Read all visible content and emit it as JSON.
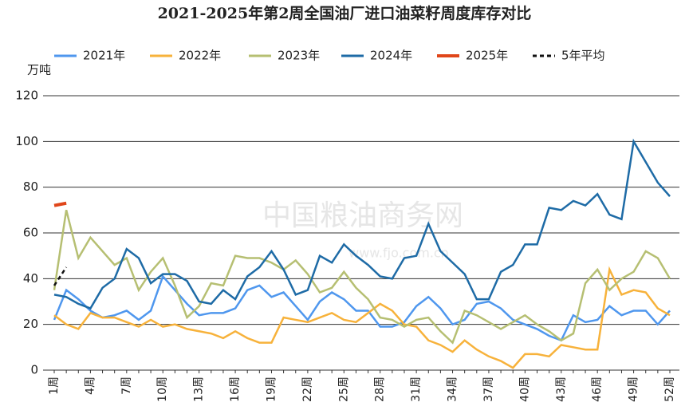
{
  "chart_data": {
    "type": "line",
    "title": "2021-2025年第2周全国油厂进口油菜籽周度库存对比",
    "y_label": "万吨",
    "watermark": [
      "中国粮油商务网",
      "www.fjo.com.cn"
    ],
    "categories": [
      "1周",
      null,
      null,
      "4周",
      null,
      null,
      "7周",
      null,
      null,
      "10周",
      null,
      null,
      "13周",
      null,
      null,
      "16周",
      null,
      null,
      "19周",
      null,
      null,
      "22周",
      null,
      null,
      "25周",
      null,
      null,
      "28周",
      null,
      null,
      "31周",
      null,
      null,
      "34周",
      null,
      null,
      "37周",
      null,
      null,
      "40周",
      null,
      null,
      "43周",
      null,
      null,
      "46周",
      null,
      null,
      "49周",
      null,
      null,
      "52周"
    ],
    "ylim": [
      0,
      120
    ],
    "yticks": [
      0,
      20,
      40,
      60,
      80,
      100,
      120
    ],
    "grid": true,
    "series": [
      {
        "name": "2021年",
        "color": "#4f97ee",
        "values": [
          22,
          35,
          31,
          26,
          23,
          24,
          26,
          22,
          26,
          41,
          35,
          29,
          24,
          25,
          25,
          27,
          35,
          37,
          32,
          34,
          28,
          22,
          30,
          34,
          31,
          26,
          26,
          19,
          19,
          21,
          28,
          32,
          27,
          20,
          22,
          29,
          30,
          27,
          22,
          20,
          18,
          15,
          13,
          24,
          21,
          22,
          28,
          24,
          26,
          26,
          20,
          26
        ]
      },
      {
        "name": "2022年",
        "color": "#f7b23b",
        "values": [
          24,
          20,
          18,
          25,
          23,
          23,
          21,
          19,
          22,
          19,
          20,
          18,
          17,
          16,
          14,
          17,
          14,
          12,
          12,
          23,
          22,
          21,
          23,
          25,
          22,
          21,
          25,
          29,
          26,
          20,
          19,
          13,
          11,
          8,
          13,
          9,
          6,
          4,
          1,
          7,
          7,
          6,
          11,
          10,
          9,
          9,
          44,
          33,
          35,
          34,
          27,
          24
        ]
      },
      {
        "name": "2023年",
        "color": "#b6bf72",
        "values": [
          35,
          70,
          49,
          58,
          52,
          46,
          49,
          35,
          43,
          49,
          37,
          23,
          28,
          38,
          37,
          50,
          49,
          49,
          47,
          44,
          48,
          42,
          34,
          36,
          43,
          36,
          31,
          23,
          22,
          19,
          22,
          23,
          17,
          12,
          26,
          24,
          21,
          18,
          21,
          24,
          20,
          17,
          13,
          16,
          38,
          44,
          35,
          40,
          43,
          52,
          49,
          40
        ]
      },
      {
        "name": "2024年",
        "color": "#1e6ba6",
        "values": [
          33,
          32,
          29,
          27,
          36,
          40,
          53,
          49,
          38,
          42,
          42,
          39,
          30,
          29,
          35,
          31,
          41,
          45,
          52,
          44,
          33,
          35,
          50,
          47,
          55,
          50,
          46,
          41,
          40,
          49,
          50,
          64,
          52,
          47,
          42,
          31,
          31,
          43,
          46,
          55,
          55,
          71,
          70,
          74,
          72,
          77,
          68,
          66,
          100,
          91,
          82,
          76
        ]
      },
      {
        "name": "2025年",
        "color": "#e0461a",
        "width": 4,
        "values": [
          72,
          73,
          null,
          null,
          null,
          null,
          null,
          null,
          null,
          null,
          null,
          null,
          null,
          null,
          null,
          null,
          null,
          null,
          null,
          null,
          null,
          null,
          null,
          null,
          null,
          null,
          null,
          null,
          null,
          null,
          null,
          null,
          null,
          null,
          null,
          null,
          null,
          null,
          null,
          null,
          null,
          null,
          null,
          null,
          null,
          null,
          null,
          null,
          null,
          null,
          null,
          null
        ]
      },
      {
        "name": "5年平均",
        "color": "#111111",
        "dash": true,
        "values": [
          37,
          45,
          null,
          null,
          null,
          null,
          null,
          null,
          null,
          null,
          null,
          null,
          null,
          null,
          null,
          null,
          null,
          null,
          null,
          null,
          null,
          null,
          null,
          null,
          null,
          null,
          null,
          null,
          null,
          null,
          null,
          null,
          null,
          null,
          null,
          null,
          null,
          null,
          null,
          null,
          null,
          null,
          null,
          null,
          null,
          null,
          null,
          null,
          null,
          null,
          null,
          null
        ]
      }
    ]
  }
}
